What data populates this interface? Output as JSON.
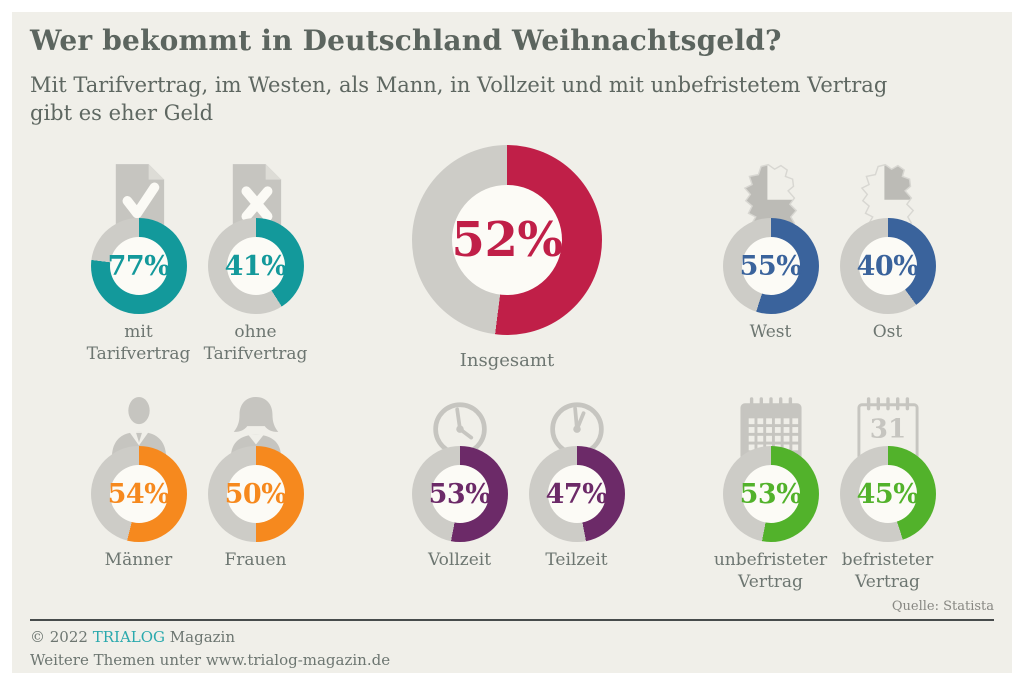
{
  "header": {
    "title": "Wer bekommt in Deutschland Weihnachtsgeld?",
    "subtitle": "Mit Tarifvertrag, im Westen, als Mann, in Vollzeit und mit unbefristetem Vertrag gibt es eher Geld"
  },
  "chart_data": {
    "type": "pie",
    "subtype": "donut-set",
    "title": "Wer bekommt in Deutschland Weihnachtsgeld?",
    "unit": "%",
    "total": {
      "label": "Insgesamt",
      "value": 52,
      "color": "#c01f48"
    },
    "groups": [
      {
        "color": "#13999b",
        "items": [
          {
            "label": "mit Tarifvertrag",
            "value": 77,
            "icon": "document-check-icon"
          },
          {
            "label": "ohne Tarifvertrag",
            "value": 41,
            "icon": "document-x-icon"
          }
        ]
      },
      {
        "color": "#3a639c",
        "items": [
          {
            "label": "West",
            "value": 55,
            "icon": "map-germany-west-icon"
          },
          {
            "label": "Ost",
            "value": 40,
            "icon": "map-germany-east-icon"
          }
        ]
      },
      {
        "color": "#f6891e",
        "items": [
          {
            "label": "Männer",
            "value": 54,
            "icon": "man-silhouette-icon"
          },
          {
            "label": "Frauen",
            "value": 50,
            "icon": "woman-silhouette-icon"
          }
        ]
      },
      {
        "color": "#6c2a68",
        "items": [
          {
            "label": "Vollzeit",
            "value": 53,
            "icon": "clock-full-time-icon"
          },
          {
            "label": "Teilzeit",
            "value": 47,
            "icon": "clock-part-time-icon"
          }
        ]
      },
      {
        "color": "#52b22b",
        "items": [
          {
            "label": "unbefristeter Vertrag",
            "value": 53,
            "icon": "calendar-grid-icon"
          },
          {
            "label": "befristeter Vertrag",
            "value": 45,
            "icon": "calendar-31-icon"
          }
        ]
      }
    ],
    "legend_position": "none",
    "grid": false
  },
  "colors": {
    "background": "#f0efe9",
    "ring_gray": "#cdccc7",
    "hole": "#fcfbf6",
    "icon_gray": "#c6c5c0",
    "brand_teal": "#2aa9ad"
  },
  "footer": {
    "source": "Quelle: Statista",
    "copyright_prefix": "© 2022 ",
    "brand": "TRIALOG",
    "copyright_suffix": " Magazin",
    "more": "Weitere Themen unter www.trialog-magazin.de"
  }
}
